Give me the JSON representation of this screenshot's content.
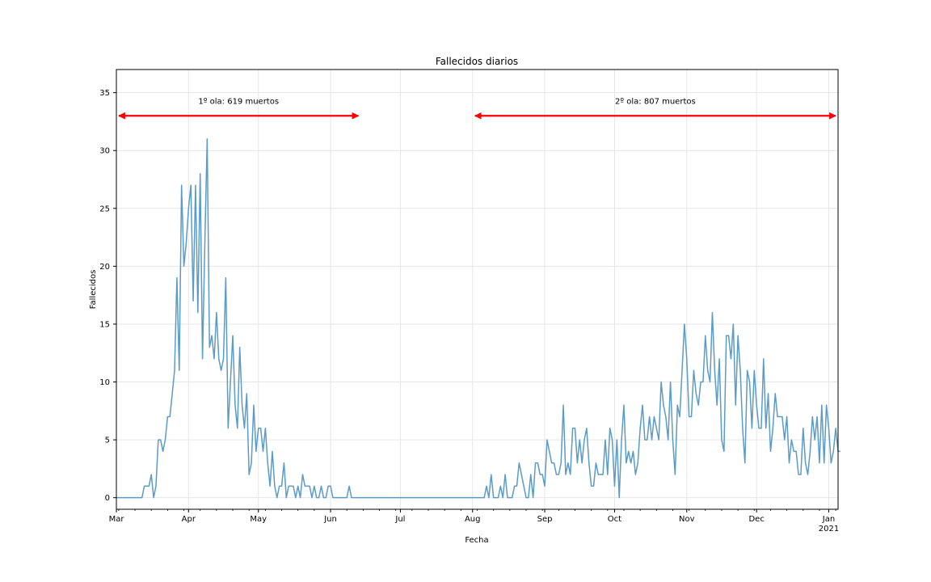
{
  "chart_data": {
    "type": "line",
    "title": "Fallecidos diarios",
    "xlabel": "Fecha",
    "ylabel": "Fallecidos",
    "x_start": "2020-03-01",
    "x_end": "2021-01-05",
    "ylim": [
      -1,
      37
    ],
    "yticks": [
      0,
      5,
      10,
      15,
      20,
      25,
      30,
      35
    ],
    "xticks": [
      {
        "date": "2020-03-01",
        "label": "Mar",
        "sublabel": ""
      },
      {
        "date": "2020-04-01",
        "label": "Apr",
        "sublabel": ""
      },
      {
        "date": "2020-05-01",
        "label": "May",
        "sublabel": ""
      },
      {
        "date": "2020-06-01",
        "label": "Jun",
        "sublabel": ""
      },
      {
        "date": "2020-07-01",
        "label": "Jul",
        "sublabel": ""
      },
      {
        "date": "2020-08-01",
        "label": "Aug",
        "sublabel": ""
      },
      {
        "date": "2020-09-01",
        "label": "Sep",
        "sublabel": ""
      },
      {
        "date": "2020-10-01",
        "label": "Oct",
        "sublabel": ""
      },
      {
        "date": "2020-11-01",
        "label": "Nov",
        "sublabel": ""
      },
      {
        "date": "2020-12-01",
        "label": "Dec",
        "sublabel": ""
      },
      {
        "date": "2021-01-01",
        "label": "Jan",
        "sublabel": "2021"
      }
    ],
    "grid": true,
    "series": [
      {
        "color": "#5a9bc8",
        "values": [
          0,
          0,
          0,
          0,
          0,
          0,
          0,
          0,
          0,
          0,
          0,
          0,
          1,
          1,
          1,
          2,
          0,
          1,
          5,
          5,
          4,
          5,
          7,
          7,
          9,
          11,
          19,
          11,
          27,
          20,
          22,
          25,
          27,
          17,
          27,
          16,
          28,
          12,
          22,
          31,
          13,
          14,
          12,
          16,
          12,
          11,
          12,
          19,
          6,
          10,
          14,
          8,
          6,
          13,
          8,
          6,
          9,
          2,
          3,
          8,
          4,
          6,
          6,
          4,
          6,
          3,
          1,
          4,
          1,
          0,
          1,
          1,
          3,
          0,
          1,
          1,
          1,
          0,
          1,
          0,
          2,
          1,
          1,
          1,
          0,
          1,
          0,
          0,
          1,
          0,
          0,
          1,
          1,
          0,
          0,
          0,
          0,
          0,
          0,
          0,
          1,
          0,
          0,
          0,
          0,
          0,
          0,
          0,
          0,
          0,
          0,
          0,
          0,
          0,
          0,
          0,
          0,
          0,
          0,
          0,
          0,
          0,
          0,
          0,
          0,
          0,
          0,
          0,
          0,
          0,
          0,
          0,
          0,
          0,
          0,
          0,
          0,
          0,
          0,
          0,
          0,
          0,
          0,
          0,
          0,
          0,
          0,
          0,
          0,
          0,
          0,
          0,
          0,
          0,
          0,
          0,
          0,
          0,
          0,
          1,
          0,
          2,
          0,
          0,
          0,
          1,
          0,
          2,
          0,
          0,
          0,
          1,
          1,
          3,
          2,
          1,
          0,
          0,
          2,
          0,
          3,
          3,
          2,
          2,
          1,
          5,
          4,
          3,
          3,
          2,
          2,
          3,
          8,
          2,
          3,
          2,
          6,
          6,
          3,
          5,
          3,
          5,
          6,
          3,
          1,
          1,
          3,
          2,
          2,
          2,
          5,
          2,
          6,
          5,
          1,
          5,
          0,
          5,
          8,
          3,
          4,
          3,
          4,
          2,
          3,
          6,
          8,
          5,
          5,
          7,
          5,
          7,
          6,
          5,
          10,
          8,
          7,
          5,
          10,
          5,
          2,
          8,
          7,
          11,
          15,
          12,
          7,
          7,
          11,
          9,
          8,
          10,
          10,
          14,
          11,
          10,
          16,
          11,
          8,
          12,
          5,
          4,
          14,
          14,
          12,
          15,
          8,
          14,
          11,
          6,
          3,
          11,
          10,
          6,
          11,
          8,
          6,
          6,
          12,
          6,
          9,
          4,
          6,
          9,
          7,
          7,
          7,
          5,
          7,
          3,
          5,
          4,
          4,
          2,
          2,
          6,
          3,
          2,
          4,
          7,
          5,
          7,
          3,
          8,
          3,
          8,
          6,
          3,
          4,
          6,
          4,
          4
        ]
      }
    ],
    "annotations": [
      {
        "text": "1º ola: 619 muertos",
        "from": "2020-03-01",
        "to": "2020-06-14",
        "y": 33,
        "color": "#ff0000"
      },
      {
        "text": "2º ola: 807 muertos",
        "from": "2020-08-01",
        "to": "2021-01-05",
        "y": 33,
        "color": "#ff0000"
      }
    ]
  }
}
